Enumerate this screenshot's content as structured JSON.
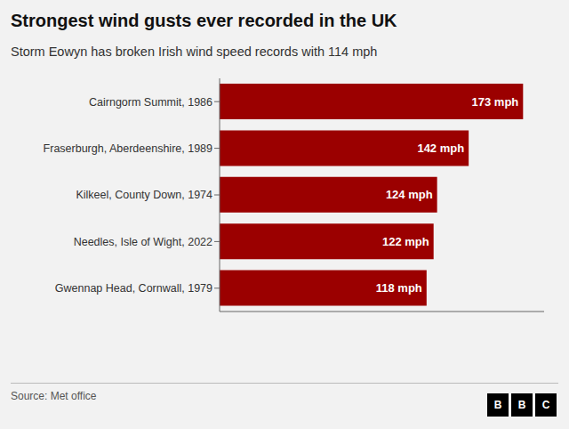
{
  "chart_data": {
    "type": "bar",
    "orientation": "horizontal",
    "title": "Strongest wind gusts ever recorded in the UK",
    "subtitle": "Storm Eowyn has broken Irish wind speed records with 114 mph",
    "categories": [
      "Cairngorm Summit, 1986",
      "Fraserburgh, Aberdeenshire, 1989",
      "Kilkeel, County Down, 1974",
      "Needles, Isle of Wight, 2022",
      "Gwennap Head, Cornwall, 1979"
    ],
    "values": [
      173,
      142,
      124,
      122,
      118
    ],
    "value_labels": [
      "173 mph",
      "142 mph",
      "124 mph",
      "122 mph",
      "118 mph"
    ],
    "data_labels": true,
    "color": "#9B0000",
    "xlim": [
      0,
      185
    ],
    "tick_labels": "y",
    "grid": false,
    "annotations": [
      "Source: Met office",
      "BBC"
    ]
  }
}
